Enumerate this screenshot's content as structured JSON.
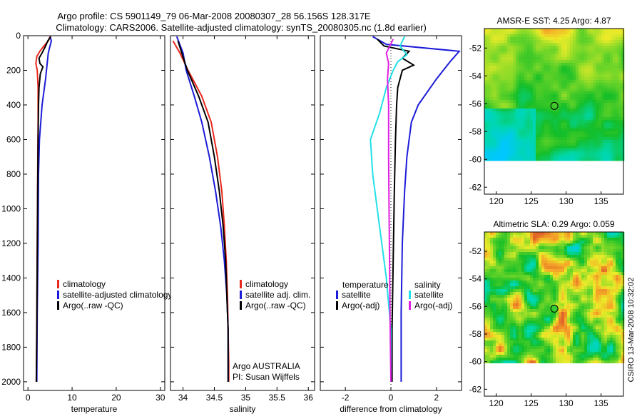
{
  "figure": {
    "title_line1": "Argo profile: CS 5901149_79 06-Mar-2008 20080307_28 56.156S 128.317E",
    "title_line2": "Climatology: CARS2006. Satellite-adjusted climatology: synTS_20080305.nc (1.8d earlier)",
    "side_credit": "CSIRO 13-Mar-2008 10:32:02"
  },
  "colors": {
    "climatology": "#e8281c",
    "satellite": "#1c1cd8",
    "argo": "#000000",
    "salinity_sat": "#22e0e8",
    "salinity_argo": "#e020e0"
  },
  "chart_data": [
    {
      "type": "line",
      "id": "temperature",
      "xlabel": "temperature",
      "ylabel": "",
      "xlim": [
        -1,
        31
      ],
      "ylim": [
        0,
        2050
      ],
      "y_reversed": true,
      "xticks": [
        0,
        10,
        20,
        30
      ],
      "yticks": [
        0,
        200,
        400,
        600,
        800,
        1000,
        1200,
        1400,
        1600,
        1800,
        2000
      ],
      "legend": [
        "climatology",
        "satellite-adjusted climatology",
        "Argo(..raw -QC)"
      ],
      "series": [
        {
          "name": "climatology",
          "color": "#e8281c",
          "points": [
            [
              5.0,
              5
            ],
            [
              4.6,
              30
            ],
            [
              3.6,
              60
            ],
            [
              2.7,
              90
            ],
            [
              2.0,
              120
            ],
            [
              1.8,
              160
            ],
            [
              2.1,
              200
            ],
            [
              2.3,
              300
            ],
            [
              2.3,
              500
            ],
            [
              2.2,
              800
            ],
            [
              2.1,
              1200
            ],
            [
              2.0,
              1600
            ],
            [
              1.9,
              2000
            ]
          ]
        },
        {
          "name": "satellite-adjusted climatology",
          "color": "#1c1cd8",
          "points": [
            [
              5.0,
              5
            ],
            [
              5.3,
              30
            ],
            [
              5.0,
              60
            ],
            [
              4.6,
              100
            ],
            [
              4.4,
              150
            ],
            [
              4.0,
              250
            ],
            [
              3.2,
              400
            ],
            [
              2.6,
              600
            ],
            [
              2.4,
              800
            ],
            [
              2.3,
              1200
            ],
            [
              2.1,
              1600
            ],
            [
              2.0,
              2000
            ]
          ]
        },
        {
          "name": "Argo(..raw -QC)",
          "color": "#000000",
          "points": [
            [
              5.2,
              5
            ],
            [
              4.5,
              30
            ],
            [
              4.0,
              60
            ],
            [
              3.2,
              100
            ],
            [
              2.5,
              130
            ],
            [
              2.7,
              160
            ],
            [
              3.4,
              180
            ],
            [
              2.8,
              220
            ],
            [
              2.5,
              300
            ],
            [
              2.4,
              400
            ],
            [
              2.3,
              600
            ],
            [
              2.2,
              900
            ],
            [
              2.1,
              1300
            ],
            [
              2.0,
              1700
            ],
            [
              1.9,
              2000
            ]
          ]
        }
      ]
    },
    {
      "type": "line",
      "id": "salinity",
      "xlabel": "salinity",
      "ylabel": "",
      "xlim": [
        33.8,
        36.1
      ],
      "ylim": [
        0,
        2050
      ],
      "y_reversed": true,
      "xticks": [
        34,
        34.5,
        35,
        35.5,
        36
      ],
      "legend": [
        "climatology",
        "satellite adj. clim.",
        "Argo(..raw -QC)"
      ],
      "annotation_line1": "Argo AUSTRALIA",
      "annotation_line2": "PI: Susan Wijffels",
      "series": [
        {
          "name": "climatology",
          "color": "#e8281c",
          "points": [
            [
              33.84,
              30
            ],
            [
              33.95,
              100
            ],
            [
              34.08,
              200
            ],
            [
              34.3,
              350
            ],
            [
              34.45,
              500
            ],
            [
              34.55,
              700
            ],
            [
              34.62,
              900
            ],
            [
              34.66,
              1100
            ],
            [
              34.69,
              1300
            ],
            [
              34.71,
              1500
            ],
            [
              34.72,
              1700
            ],
            [
              34.73,
              1900
            ],
            [
              34.73,
              2000
            ]
          ]
        },
        {
          "name": "satellite adj. clim.",
          "color": "#1c1cd8",
          "points": [
            [
              33.9,
              5
            ],
            [
              34.0,
              100
            ],
            [
              34.05,
              200
            ],
            [
              34.18,
              350
            ],
            [
              34.3,
              500
            ],
            [
              34.42,
              700
            ],
            [
              34.52,
              900
            ],
            [
              34.6,
              1100
            ],
            [
              34.66,
              1300
            ],
            [
              34.7,
              1500
            ],
            [
              34.72,
              1700
            ],
            [
              34.72,
              1900
            ],
            [
              34.72,
              2000
            ]
          ]
        },
        {
          "name": "Argo(..raw -QC)",
          "color": "#000000",
          "points": [
            [
              33.92,
              30
            ],
            [
              33.98,
              100
            ],
            [
              34.07,
              200
            ],
            [
              34.25,
              350
            ],
            [
              34.4,
              500
            ],
            [
              34.5,
              700
            ],
            [
              34.58,
              900
            ],
            [
              34.64,
              1100
            ],
            [
              34.68,
              1300
            ],
            [
              34.7,
              1500
            ],
            [
              34.72,
              1700
            ],
            [
              34.72,
              1900
            ],
            [
              34.72,
              2000
            ]
          ]
        }
      ]
    },
    {
      "type": "line",
      "id": "difference",
      "xlabel": "difference from climatology",
      "ylabel": "",
      "xlim": [
        -3.1,
        3.1
      ],
      "ylim": [
        0,
        2050
      ],
      "y_reversed": true,
      "xticks": [
        -2,
        0,
        2
      ],
      "legend_temperature_header": "temperature",
      "legend_temperature": [
        "satellite",
        "Argo(-adj)"
      ],
      "legend_salinity_header": "salinity",
      "legend_salinity": [
        "satellite",
        "Argo(-adj)"
      ],
      "series": [
        {
          "name": "temperature satellite",
          "color": "#1c1cd8",
          "points": [
            [
              -0.8,
              5
            ],
            [
              -0.2,
              50
            ],
            [
              3.0,
              90
            ],
            [
              2.6,
              150
            ],
            [
              2.0,
              250
            ],
            [
              1.2,
              400
            ],
            [
              0.9,
              500
            ],
            [
              0.7,
              700
            ],
            [
              0.6,
              900
            ],
            [
              0.5,
              1200
            ],
            [
              0.45,
              1600
            ],
            [
              0.45,
              2000
            ]
          ]
        },
        {
          "name": "temperature Argo(-adj)",
          "color": "#000000",
          "points": [
            [
              -0.6,
              20
            ],
            [
              -0.3,
              60
            ],
            [
              0.8,
              90
            ],
            [
              0.5,
              130
            ],
            [
              1.0,
              170
            ],
            [
              0.5,
              200
            ],
            [
              0.3,
              300
            ],
            [
              0.25,
              400
            ],
            [
              0.2,
              600
            ],
            [
              0.15,
              900
            ],
            [
              0.1,
              1300
            ],
            [
              0.05,
              1700
            ],
            [
              0.05,
              2000
            ]
          ]
        },
        {
          "name": "salinity satellite",
          "color": "#22e0e8",
          "points": [
            [
              0.6,
              5
            ],
            [
              0.4,
              60
            ],
            [
              0.7,
              110
            ],
            [
              0.3,
              150
            ],
            [
              0.1,
              200
            ],
            [
              -0.2,
              300
            ],
            [
              -0.5,
              450
            ],
            [
              -0.9,
              600
            ],
            [
              -0.8,
              800
            ],
            [
              -0.5,
              1100
            ],
            [
              -0.2,
              1400
            ],
            [
              0.0,
              1700
            ],
            [
              0.0,
              2000
            ]
          ]
        },
        {
          "name": "salinity Argo(-adj)",
          "color": "#e020e0",
          "points": [
            [
              0.1,
              20
            ],
            [
              -0.2,
              100
            ],
            [
              -0.1,
              160
            ],
            [
              -0.15,
              250
            ],
            [
              -0.1,
              400
            ],
            [
              -0.1,
              700
            ],
            [
              -0.08,
              1000
            ],
            [
              -0.06,
              1300
            ],
            [
              -0.04,
              1600
            ],
            [
              0.0,
              2000
            ]
          ]
        }
      ]
    },
    {
      "type": "heatmap",
      "id": "sst-map",
      "title": "AMSR-E SST: 4.25 Argo: 4.87",
      "xlim": [
        118.3,
        138.2
      ],
      "ylim": [
        -62.5,
        -50.6
      ],
      "xticks": [
        120,
        125,
        130,
        135
      ],
      "yticks": [
        -52,
        -54,
        -56,
        -58,
        -60,
        -62
      ],
      "data_extent": {
        "lon": [
          118.3,
          138.2
        ],
        "lat": [
          -60.1,
          -50.6
        ]
      },
      "marker": {
        "lon": 128.317,
        "lat": -56.156,
        "fill": "none"
      }
    },
    {
      "type": "heatmap",
      "id": "sla-map",
      "title": "Altimetric SLA: 0.29 Argo: 0.059",
      "xlim": [
        118.3,
        138.2
      ],
      "ylim": [
        -62.5,
        -50.6
      ],
      "xticks": [
        120,
        125,
        130,
        135
      ],
      "yticks": [
        -52,
        -54,
        -56,
        -58,
        -60,
        -62
      ],
      "data_extent": {
        "lon": [
          118.3,
          138.2
        ],
        "lat": [
          -60.1,
          -50.6
        ]
      },
      "marker": {
        "lon": 128.317,
        "lat": -56.156,
        "fill": "#33cc33"
      }
    }
  ]
}
